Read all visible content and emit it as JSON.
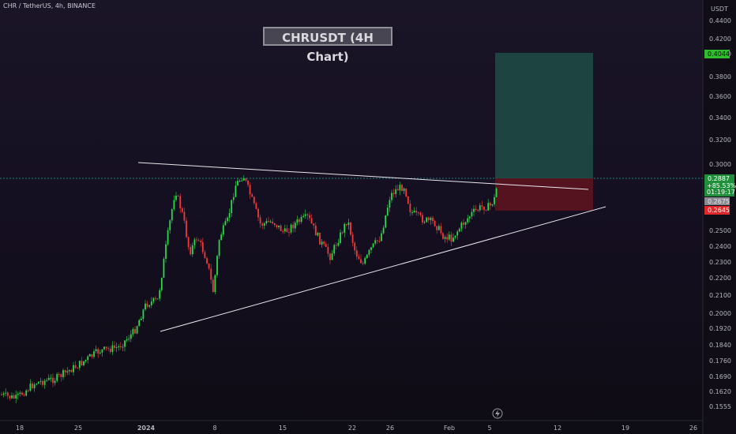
{
  "header": {
    "symbol": "CHR / TetherUS, 4h, BINANCE",
    "currency": "USDT"
  },
  "chart_data": {
    "type": "candlestick",
    "title": "CHRUSDT (4H Chart)",
    "y_ticks": [
      "0.4400",
      "0.4200",
      "0.4000",
      "0.3800",
      "0.3600",
      "0.3400",
      "0.3200",
      "0.3000",
      "0.2500",
      "0.2400",
      "0.2300",
      "0.2200",
      "0.2100",
      "0.2000",
      "0.1920",
      "0.1840",
      "0.1760",
      "0.1690",
      "0.1620",
      "0.1555"
    ],
    "x_ticks": [
      "18",
      "25",
      "2024",
      "8",
      "15",
      "22",
      "26",
      "Feb",
      "5",
      "12",
      "19",
      "26"
    ],
    "price_tags": {
      "target": "0.4044",
      "current": "0.2887",
      "change": "+85.53%",
      "countdown": "01:19:17",
      "entry": "0.2675",
      "stop": "0.2645"
    },
    "colors": {
      "up": "#26a69a",
      "down": "#ef5350",
      "profit_zone": "#1e4d45",
      "loss_zone": "#5c1420",
      "target_tag": "#2dbd2d",
      "stop_tag": "#e02828"
    },
    "grid": false,
    "drawings": [
      "descending resistance trendline",
      "ascending support trendline",
      "long position risk/reward box"
    ]
  }
}
